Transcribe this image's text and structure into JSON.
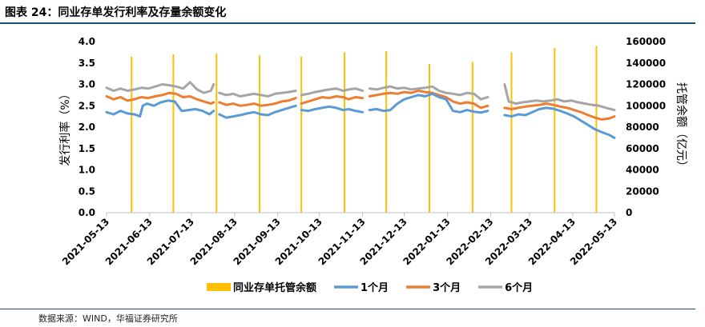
{
  "figure": {
    "title": "图表 24：同业存单发行利率及存量余额变化",
    "source": "数据来源：WIND，华福证券研究所"
  },
  "colors": {
    "balance": "#ffc000",
    "m1": "#5b9bd5",
    "m3": "#ed7d31",
    "m6": "#a5a5a5",
    "rule": "#1f4e79"
  },
  "chart_data": {
    "type": "line",
    "x_type": "date",
    "x_ticks": [
      "2021-05-13",
      "2021-06-13",
      "2021-07-13",
      "2021-08-13",
      "2021-09-13",
      "2021-10-13",
      "2021-11-13",
      "2021-12-13",
      "2022-01-13",
      "2022-02-13",
      "2022-03-13",
      "2022-04-13",
      "2022-05-13"
    ],
    "x_range": [
      "2021-05-13",
      "2022-05-13"
    ],
    "y_left": {
      "label": "发行利率（%）",
      "range": [
        0,
        4
      ],
      "ticks": [
        "0.0",
        "0.5",
        "1.0",
        "1.5",
        "2.0",
        "2.5",
        "3.0",
        "3.5",
        "4.0"
      ]
    },
    "y_right": {
      "label": "托管余额（亿元）",
      "range": [
        0,
        160000
      ],
      "ticks": [
        "0",
        "20000",
        "40000",
        "60000",
        "80000",
        "100000",
        "120000",
        "140000",
        "160000"
      ]
    },
    "legend_position": "bottom",
    "series": [
      {
        "name": "同业存单托管余额",
        "type": "bar",
        "axis": "right",
        "points": [
          [
            "2021-05-31",
            146000
          ],
          [
            "2021-06-30",
            148000
          ],
          [
            "2021-07-31",
            149000
          ],
          [
            "2021-08-31",
            147000
          ],
          [
            "2021-09-30",
            146000
          ],
          [
            "2021-10-31",
            150000
          ],
          [
            "2021-11-30",
            151000
          ],
          [
            "2021-12-31",
            139000
          ],
          [
            "2022-01-31",
            141000
          ],
          [
            "2022-02-28",
            150000
          ],
          [
            "2022-03-31",
            154000
          ],
          [
            "2022-04-30",
            156000
          ]
        ]
      },
      {
        "name": "1个月",
        "type": "line",
        "axis": "left",
        "segments": [
          [
            [
              "2021-05-13",
              2.35
            ],
            [
              "2021-05-18",
              2.3
            ],
            [
              "2021-05-23",
              2.38
            ],
            [
              "2021-05-28",
              2.32
            ],
            [
              "2021-06-02",
              2.3
            ],
            [
              "2021-06-06",
              2.25
            ],
            [
              "2021-06-08",
              2.5
            ],
            [
              "2021-06-11",
              2.55
            ],
            [
              "2021-06-16",
              2.5
            ],
            [
              "2021-06-21",
              2.58
            ],
            [
              "2021-06-26",
              2.62
            ],
            [
              "2021-07-01",
              2.6
            ],
            [
              "2021-07-06",
              2.38
            ],
            [
              "2021-07-11",
              2.4
            ],
            [
              "2021-07-16",
              2.42
            ],
            [
              "2021-07-21",
              2.38
            ],
            [
              "2021-07-26",
              2.3
            ],
            [
              "2021-07-29",
              2.38
            ]
          ],
          [
            [
              "2021-08-02",
              2.3
            ],
            [
              "2021-08-07",
              2.22
            ],
            [
              "2021-08-12",
              2.25
            ],
            [
              "2021-08-17",
              2.28
            ],
            [
              "2021-08-22",
              2.32
            ],
            [
              "2021-08-27",
              2.35
            ],
            [
              "2021-09-01",
              2.3
            ],
            [
              "2021-09-06",
              2.28
            ],
            [
              "2021-09-11",
              2.35
            ],
            [
              "2021-09-16",
              2.4
            ],
            [
              "2021-09-21",
              2.45
            ],
            [
              "2021-09-26",
              2.5
            ]
          ],
          [
            [
              "2021-09-30",
              2.4
            ],
            [
              "2021-10-05",
              2.38
            ],
            [
              "2021-10-10",
              2.42
            ],
            [
              "2021-10-15",
              2.45
            ],
            [
              "2021-10-20",
              2.48
            ],
            [
              "2021-10-25",
              2.45
            ],
            [
              "2021-10-30",
              2.4
            ],
            [
              "2021-11-03",
              2.42
            ],
            [
              "2021-11-08",
              2.38
            ],
            [
              "2021-11-13",
              2.35
            ]
          ],
          [
            [
              "2021-11-18",
              2.4
            ],
            [
              "2021-11-23",
              2.42
            ],
            [
              "2021-11-28",
              2.38
            ],
            [
              "2021-12-03",
              2.4
            ],
            [
              "2021-12-08",
              2.55
            ],
            [
              "2021-12-13",
              2.65
            ],
            [
              "2021-12-18",
              2.7
            ],
            [
              "2021-12-23",
              2.75
            ],
            [
              "2021-12-28",
              2.72
            ],
            [
              "2022-01-02",
              2.78
            ],
            [
              "2022-01-07",
              2.7
            ],
            [
              "2022-01-12",
              2.65
            ],
            [
              "2022-01-17",
              2.38
            ],
            [
              "2022-01-22",
              2.35
            ],
            [
              "2022-01-27",
              2.4
            ],
            [
              "2022-02-01",
              2.36
            ],
            [
              "2022-02-06",
              2.34
            ],
            [
              "2022-02-11",
              2.38
            ]
          ],
          [
            [
              "2022-02-23",
              2.28
            ],
            [
              "2022-02-28",
              2.25
            ],
            [
              "2022-03-05",
              2.3
            ],
            [
              "2022-03-10",
              2.28
            ],
            [
              "2022-03-15",
              2.35
            ],
            [
              "2022-03-20",
              2.42
            ],
            [
              "2022-03-25",
              2.45
            ],
            [
              "2022-03-30",
              2.43
            ],
            [
              "2022-04-04",
              2.38
            ],
            [
              "2022-04-09",
              2.32
            ],
            [
              "2022-04-14",
              2.25
            ],
            [
              "2022-04-19",
              2.15
            ],
            [
              "2022-04-24",
              2.05
            ],
            [
              "2022-04-29",
              1.95
            ],
            [
              "2022-05-04",
              1.88
            ],
            [
              "2022-05-09",
              1.82
            ],
            [
              "2022-05-13",
              1.75
            ]
          ]
        ]
      },
      {
        "name": "3个月",
        "type": "line",
        "axis": "left",
        "segments": [
          [
            [
              "2021-05-13",
              2.72
            ],
            [
              "2021-05-18",
              2.65
            ],
            [
              "2021-05-23",
              2.7
            ],
            [
              "2021-05-28",
              2.62
            ],
            [
              "2021-06-02",
              2.65
            ],
            [
              "2021-06-07",
              2.7
            ],
            [
              "2021-06-12",
              2.68
            ],
            [
              "2021-06-17",
              2.72
            ],
            [
              "2021-06-22",
              2.75
            ],
            [
              "2021-06-27",
              2.8
            ],
            [
              "2021-07-02",
              2.78
            ],
            [
              "2021-07-07",
              2.7
            ],
            [
              "2021-07-12",
              2.72
            ],
            [
              "2021-07-17",
              2.65
            ],
            [
              "2021-07-22",
              2.6
            ],
            [
              "2021-07-27",
              2.55
            ],
            [
              "2021-07-29",
              2.58
            ]
          ],
          [
            [
              "2021-08-02",
              2.58
            ],
            [
              "2021-08-07",
              2.52
            ],
            [
              "2021-08-12",
              2.55
            ],
            [
              "2021-08-17",
              2.5
            ],
            [
              "2021-08-22",
              2.52
            ],
            [
              "2021-08-27",
              2.55
            ],
            [
              "2021-09-01",
              2.5
            ],
            [
              "2021-09-06",
              2.52
            ],
            [
              "2021-09-11",
              2.55
            ],
            [
              "2021-09-16",
              2.6
            ],
            [
              "2021-09-21",
              2.62
            ],
            [
              "2021-09-26",
              2.68
            ]
          ],
          [
            [
              "2021-09-30",
              2.55
            ],
            [
              "2021-10-05",
              2.6
            ],
            [
              "2021-10-10",
              2.65
            ],
            [
              "2021-10-15",
              2.7
            ],
            [
              "2021-10-20",
              2.68
            ],
            [
              "2021-10-25",
              2.72
            ],
            [
              "2021-10-30",
              2.7
            ],
            [
              "2021-11-03",
              2.65
            ],
            [
              "2021-11-08",
              2.7
            ],
            [
              "2021-11-13",
              2.68
            ]
          ],
          [
            [
              "2021-11-18",
              2.72
            ],
            [
              "2021-11-23",
              2.75
            ],
            [
              "2021-11-28",
              2.78
            ],
            [
              "2021-12-03",
              2.8
            ],
            [
              "2021-12-08",
              2.78
            ],
            [
              "2021-12-13",
              2.82
            ],
            [
              "2021-12-18",
              2.8
            ],
            [
              "2021-12-23",
              2.85
            ],
            [
              "2021-12-28",
              2.82
            ],
            [
              "2022-01-02",
              2.8
            ],
            [
              "2022-01-07",
              2.75
            ],
            [
              "2022-01-12",
              2.7
            ],
            [
              "2022-01-17",
              2.6
            ],
            [
              "2022-01-22",
              2.55
            ],
            [
              "2022-01-27",
              2.58
            ],
            [
              "2022-02-01",
              2.55
            ],
            [
              "2022-02-06",
              2.45
            ],
            [
              "2022-02-11",
              2.5
            ]
          ],
          [
            [
              "2022-02-23",
              2.45
            ],
            [
              "2022-02-28",
              2.42
            ],
            [
              "2022-03-05",
              2.45
            ],
            [
              "2022-03-10",
              2.48
            ],
            [
              "2022-03-15",
              2.5
            ],
            [
              "2022-03-20",
              2.52
            ],
            [
              "2022-03-25",
              2.55
            ],
            [
              "2022-03-30",
              2.52
            ],
            [
              "2022-04-04",
              2.48
            ],
            [
              "2022-04-09",
              2.45
            ],
            [
              "2022-04-14",
              2.4
            ],
            [
              "2022-04-19",
              2.35
            ],
            [
              "2022-04-24",
              2.28
            ],
            [
              "2022-04-29",
              2.22
            ],
            [
              "2022-05-04",
              2.18
            ],
            [
              "2022-05-09",
              2.2
            ],
            [
              "2022-05-13",
              2.25
            ]
          ]
        ]
      },
      {
        "name": "6个月",
        "type": "line",
        "axis": "left",
        "segments": [
          [
            [
              "2021-05-13",
              2.92
            ],
            [
              "2021-05-18",
              2.85
            ],
            [
              "2021-05-23",
              2.9
            ],
            [
              "2021-05-28",
              2.85
            ],
            [
              "2021-06-02",
              2.88
            ],
            [
              "2021-06-07",
              2.92
            ],
            [
              "2021-06-12",
              2.9
            ],
            [
              "2021-06-17",
              2.95
            ],
            [
              "2021-06-22",
              3.0
            ],
            [
              "2021-06-27",
              2.98
            ],
            [
              "2021-07-02",
              2.95
            ],
            [
              "2021-07-07",
              2.9
            ],
            [
              "2021-07-12",
              3.05
            ],
            [
              "2021-07-17",
              2.88
            ],
            [
              "2021-07-22",
              2.8
            ],
            [
              "2021-07-27",
              2.85
            ],
            [
              "2021-07-29",
              3.0
            ]
          ],
          [
            [
              "2021-08-02",
              2.8
            ],
            [
              "2021-08-07",
              2.75
            ],
            [
              "2021-08-12",
              2.78
            ],
            [
              "2021-08-17",
              2.72
            ],
            [
              "2021-08-22",
              2.75
            ],
            [
              "2021-08-27",
              2.78
            ],
            [
              "2021-09-01",
              2.75
            ],
            [
              "2021-09-06",
              2.72
            ],
            [
              "2021-09-11",
              2.78
            ],
            [
              "2021-09-16",
              2.8
            ],
            [
              "2021-09-21",
              2.82
            ],
            [
              "2021-09-26",
              2.85
            ]
          ],
          [
            [
              "2021-09-30",
              2.75
            ],
            [
              "2021-10-05",
              2.78
            ],
            [
              "2021-10-10",
              2.82
            ],
            [
              "2021-10-15",
              2.85
            ],
            [
              "2021-10-20",
              2.88
            ],
            [
              "2021-10-25",
              2.9
            ],
            [
              "2021-10-30",
              2.85
            ],
            [
              "2021-11-03",
              2.88
            ],
            [
              "2021-11-08",
              2.9
            ],
            [
              "2021-11-13",
              2.85
            ]
          ],
          [
            [
              "2021-11-18",
              2.9
            ],
            [
              "2021-11-23",
              2.88
            ],
            [
              "2021-11-28",
              2.92
            ],
            [
              "2021-12-03",
              2.95
            ],
            [
              "2021-12-08",
              2.9
            ],
            [
              "2021-12-13",
              2.92
            ],
            [
              "2021-12-18",
              2.88
            ],
            [
              "2021-12-23",
              2.9
            ],
            [
              "2021-12-28",
              2.92
            ],
            [
              "2022-01-02",
              2.95
            ],
            [
              "2022-01-07",
              2.85
            ],
            [
              "2022-01-12",
              2.8
            ],
            [
              "2022-01-17",
              2.78
            ],
            [
              "2022-01-22",
              2.75
            ],
            [
              "2022-01-27",
              2.8
            ],
            [
              "2022-02-01",
              2.78
            ],
            [
              "2022-02-06",
              2.65
            ],
            [
              "2022-02-11",
              2.7
            ]
          ],
          [
            [
              "2022-02-23",
              3.0
            ],
            [
              "2022-02-26",
              2.6
            ],
            [
              "2022-03-03",
              2.55
            ],
            [
              "2022-03-08",
              2.58
            ],
            [
              "2022-03-13",
              2.6
            ],
            [
              "2022-03-18",
              2.62
            ],
            [
              "2022-03-23",
              2.6
            ],
            [
              "2022-03-28",
              2.62
            ],
            [
              "2022-04-02",
              2.65
            ],
            [
              "2022-04-07",
              2.6
            ],
            [
              "2022-04-12",
              2.62
            ],
            [
              "2022-04-17",
              2.58
            ],
            [
              "2022-04-22",
              2.55
            ],
            [
              "2022-04-27",
              2.52
            ],
            [
              "2022-05-02",
              2.5
            ],
            [
              "2022-05-07",
              2.45
            ],
            [
              "2022-05-13",
              2.4
            ]
          ]
        ]
      }
    ]
  }
}
